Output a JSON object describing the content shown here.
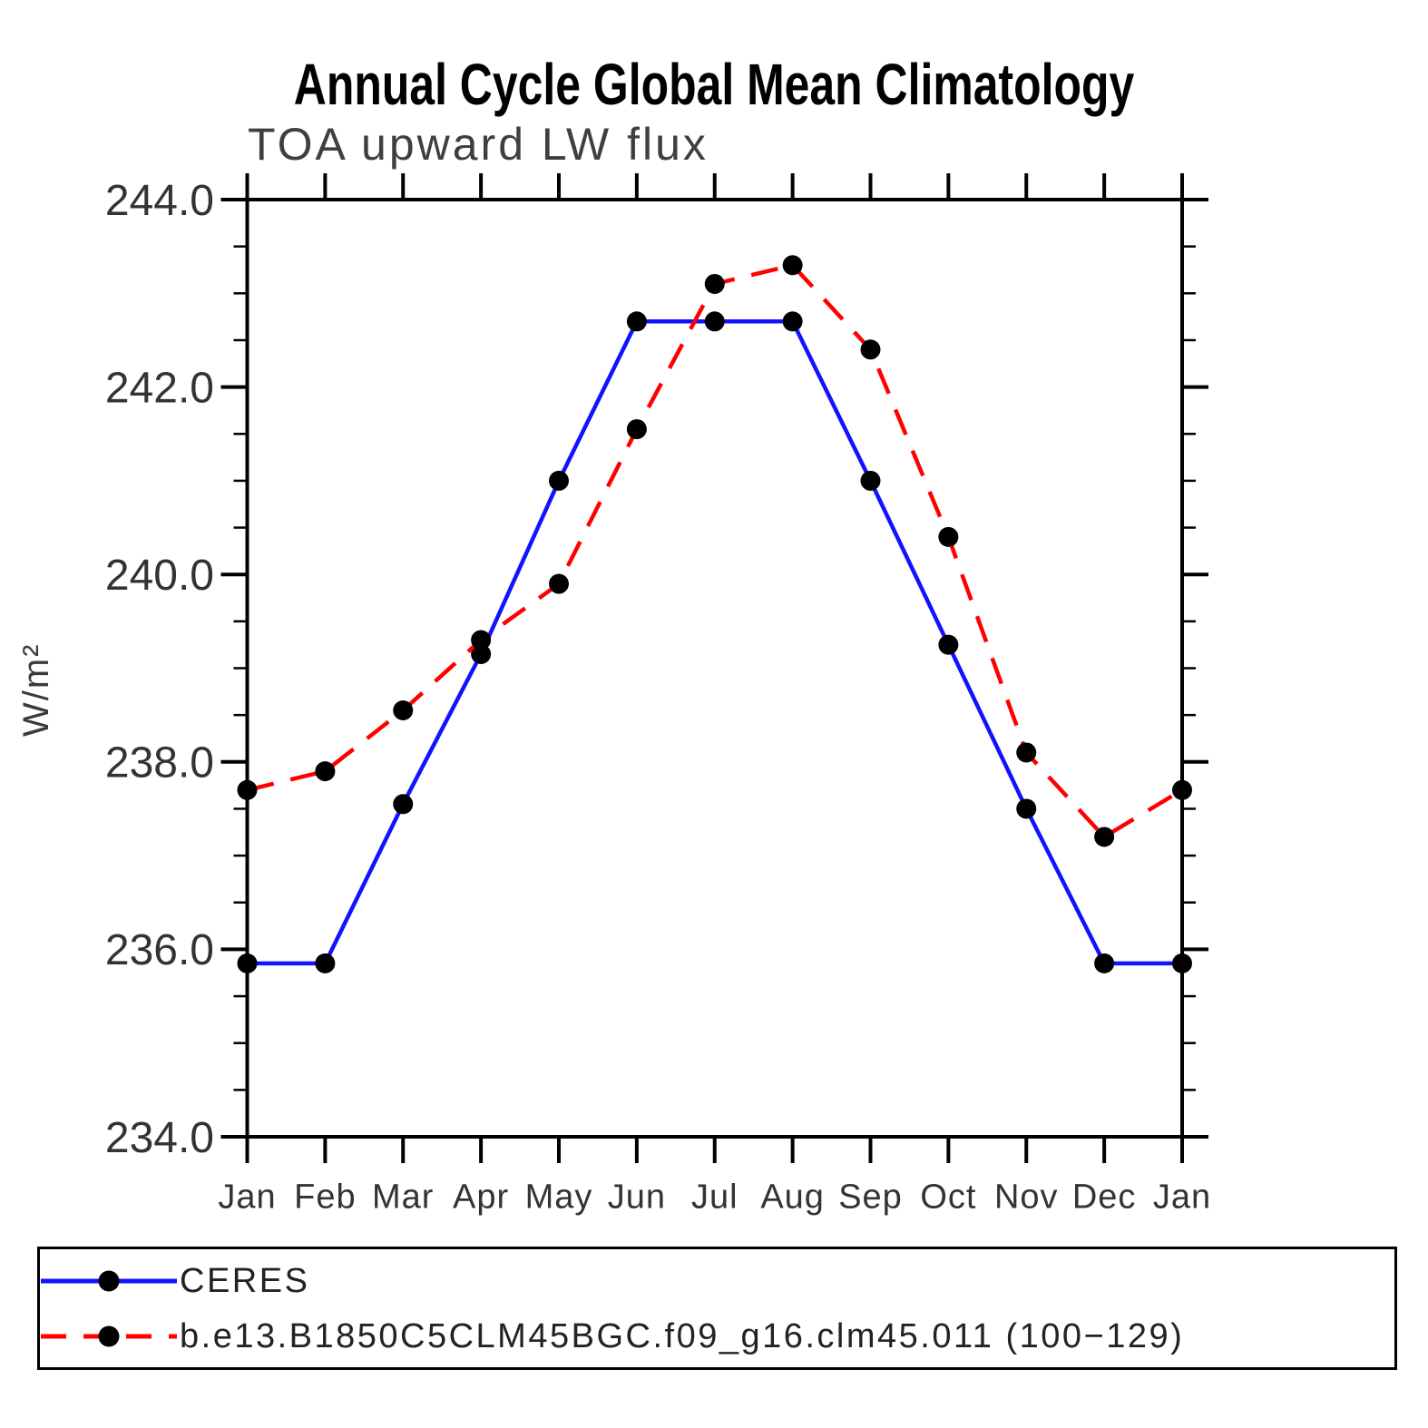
{
  "page": {
    "background": "#ffffff"
  },
  "chart_data": {
    "type": "line",
    "title": "Annual Cycle Global Mean Climatology",
    "subtitle": "TOA upward LW flux",
    "ylabel": "W/m²",
    "categories": [
      "Jan",
      "Feb",
      "Mar",
      "Apr",
      "May",
      "Jun",
      "Jul",
      "Aug",
      "Sep",
      "Oct",
      "Nov",
      "Dec",
      "Jan"
    ],
    "ylim": [
      234.0,
      244.0
    ],
    "y_major_step": 2.0,
    "y_minor_step": 0.5,
    "y_tick_labels": [
      "244.0",
      "242.0",
      "240.0",
      "238.0",
      "236.0",
      "234.0"
    ],
    "grid": false,
    "legend_position": "bottom-outside",
    "axis_color": "#000000",
    "marker_color": "#000000",
    "series": [
      {
        "name": "CERES",
        "color": "#1212ff",
        "line_style": "solid",
        "marker": "filled-circle",
        "values": [
          235.85,
          235.85,
          237.55,
          239.15,
          241.0,
          242.7,
          242.7,
          242.7,
          241.0,
          239.25,
          237.5,
          235.85,
          235.85
        ]
      },
      {
        "name": "b.e13.B1850C5CLM45BGC.f09_g16.clm45.011 (100−129)",
        "color": "#ff0000",
        "line_style": "dashed",
        "marker": "filled-circle",
        "values": [
          237.7,
          237.9,
          238.55,
          239.3,
          239.9,
          241.55,
          243.1,
          243.3,
          242.4,
          240.4,
          238.1,
          237.2,
          237.7
        ]
      }
    ]
  }
}
